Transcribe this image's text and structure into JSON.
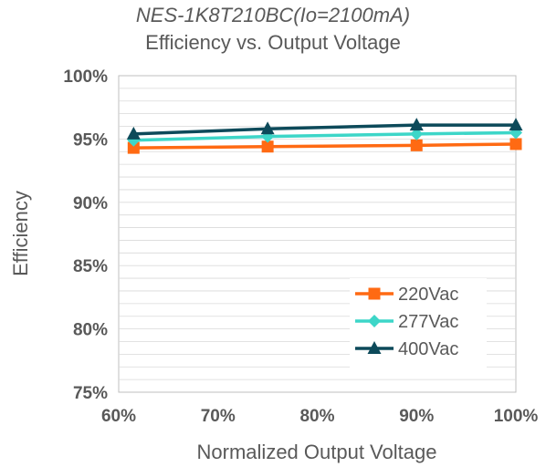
{
  "chart_data": {
    "type": "line",
    "title": "NES-1K8T210BC(Io=2100mA)",
    "subtitle": "Efficiency vs. Output Voltage",
    "xlabel": "Normalized Output Voltage",
    "ylabel": "Efficiency",
    "xlim": [
      60,
      100
    ],
    "ylim": [
      75,
      100
    ],
    "x_ticks": [
      "60%",
      "70%",
      "80%",
      "90%",
      "100%"
    ],
    "y_ticks": [
      "100%",
      "95%",
      "90%",
      "85%",
      "80%",
      "75%"
    ],
    "grid": true,
    "legend_position": "bottom-right",
    "x": [
      61.5,
      75,
      90,
      100
    ],
    "series": [
      {
        "name": "220Vac",
        "values": [
          94.3,
          94.4,
          94.5,
          94.6
        ],
        "color": "#ff6a13",
        "marker": "square"
      },
      {
        "name": "277Vac",
        "values": [
          94.9,
          95.2,
          95.4,
          95.5
        ],
        "color": "#3dd6c8",
        "marker": "diamond"
      },
      {
        "name": "400Vac",
        "values": [
          95.4,
          95.8,
          96.1,
          96.1
        ],
        "color": "#0d4a5a",
        "marker": "triangle"
      }
    ]
  }
}
